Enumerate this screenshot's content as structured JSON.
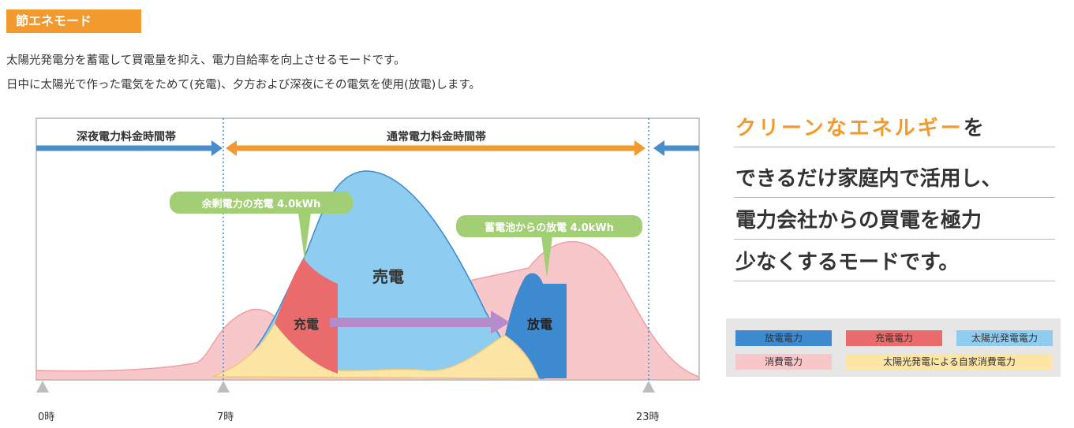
{
  "badge": "節エネモード",
  "description": [
    "太陽光発電分を蓄電して買電量を抑え、電力自給率を向上させるモードです。",
    "日中に太陽光で作った電気をためて(充電)、夕方および深夜にその電気を使用(放電)します。"
  ],
  "diagram": {
    "zones": {
      "night": "深夜電力料金時間帯",
      "day": "通常電力料金時間帯"
    },
    "areas": {
      "sell": "売電",
      "charge": "充電",
      "discharge": "放電"
    },
    "callouts": {
      "charge": "余剰電力の充電 4.0kWh",
      "discharge": "蓄電池からの放電 4.0kWh"
    },
    "time_markers": [
      "0時",
      "7時",
      "23時"
    ]
  },
  "tagline": {
    "line1_highlight": "クリーンなエネルギー",
    "line1_rest": "を",
    "line2": "できるだけ家庭内で活用し、",
    "line3": "電力会社からの買電を極力",
    "line4": "少なくするモードです。"
  },
  "legend": [
    {
      "label": "放電電力",
      "color": "#3d8ad0",
      "text_color": "#222"
    },
    {
      "label": "充電電力",
      "color": "#ea6b6b",
      "text_color": "#222"
    },
    {
      "label": "太陽光発電電力",
      "color": "#8ecdf0",
      "text_color": "#222"
    },
    {
      "label": "消費電力",
      "color": "#f7c7ca",
      "text_color": "#222"
    },
    {
      "label": "太陽光発電による自家消費電力",
      "color": "#fde5a6",
      "text_color": "#222"
    }
  ],
  "colors": {
    "accent": "#f39a2e",
    "night_arrow": "#4b8ccb",
    "day_arrow": "#f39a2e",
    "callout": "#a2cf74",
    "transfer_arrow": "#b58cc9"
  }
}
